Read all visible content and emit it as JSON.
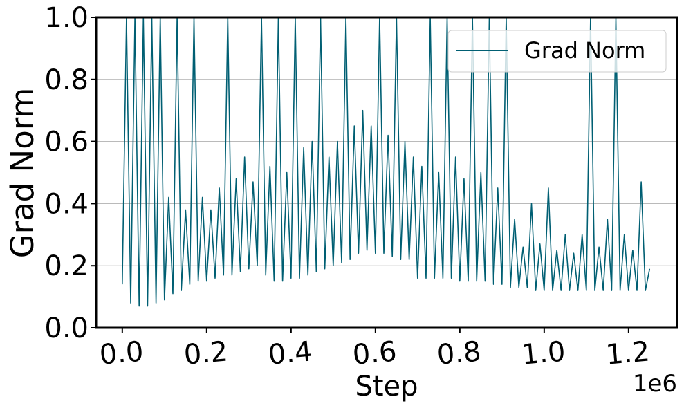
{
  "chart_data": {
    "type": "line",
    "xlabel": "Step",
    "ylabel": "Grad Norm",
    "x_offset_label": "1e6",
    "xlim": [
      -62000,
      1315000
    ],
    "ylim": [
      0,
      1
    ],
    "xticks": [
      {
        "value": 0,
        "label": "0.0"
      },
      {
        "value": 200000,
        "label": "0.2"
      },
      {
        "value": 400000,
        "label": "0.4"
      },
      {
        "value": 600000,
        "label": "0.6"
      },
      {
        "value": 800000,
        "label": "0.8"
      },
      {
        "value": 1000000,
        "label": "1.0"
      },
      {
        "value": 1200000,
        "label": "1.2"
      }
    ],
    "yticks": [
      {
        "value": 0,
        "label": "0.0"
      },
      0.2,
      0.4,
      0.6,
      0.8,
      {
        "value": 1,
        "label": "1.0"
      }
    ],
    "grid": true,
    "legend_position": "upper right",
    "x": [
      0,
      10000,
      20000,
      30000,
      40000,
      50000,
      60000,
      70000,
      80000,
      90000,
      100000,
      110000,
      120000,
      130000,
      140000,
      150000,
      160000,
      170000,
      180000,
      190000,
      200000,
      210000,
      220000,
      230000,
      240000,
      250000,
      260000,
      270000,
      280000,
      290000,
      300000,
      310000,
      320000,
      330000,
      340000,
      350000,
      360000,
      370000,
      380000,
      390000,
      400000,
      410000,
      420000,
      430000,
      440000,
      450000,
      460000,
      470000,
      480000,
      490000,
      500000,
      510000,
      520000,
      530000,
      540000,
      550000,
      560000,
      570000,
      580000,
      590000,
      600000,
      610000,
      620000,
      630000,
      640000,
      650000,
      660000,
      670000,
      680000,
      690000,
      700000,
      710000,
      720000,
      730000,
      740000,
      750000,
      760000,
      770000,
      780000,
      790000,
      800000,
      810000,
      820000,
      830000,
      840000,
      850000,
      860000,
      870000,
      880000,
      890000,
      900000,
      910000,
      920000,
      930000,
      940000,
      950000,
      960000,
      970000,
      980000,
      990000,
      1000000,
      1010000,
      1020000,
      1030000,
      1040000,
      1050000,
      1060000,
      1070000,
      1080000,
      1090000,
      1100000,
      1110000,
      1120000,
      1130000,
      1140000,
      1150000,
      1160000,
      1170000,
      1180000,
      1190000,
      1200000,
      1210000,
      1220000,
      1230000,
      1240000,
      1250000
    ],
    "series": [
      {
        "name": "Grad Norm",
        "color": "#005f73",
        "values": [
          0.14,
          1.0,
          0.08,
          1.0,
          0.07,
          1.0,
          0.07,
          1.0,
          0.08,
          1.0,
          0.09,
          0.42,
          0.11,
          1.0,
          0.12,
          0.38,
          0.14,
          1.0,
          0.15,
          0.42,
          0.15,
          0.38,
          0.16,
          0.45,
          0.17,
          1.0,
          0.17,
          0.48,
          0.18,
          0.55,
          0.19,
          0.47,
          0.2,
          1.0,
          0.17,
          0.52,
          0.15,
          1.0,
          0.15,
          0.5,
          0.16,
          1.0,
          0.16,
          0.58,
          0.17,
          0.6,
          0.18,
          1.0,
          0.19,
          0.55,
          0.2,
          0.6,
          0.21,
          1.0,
          0.22,
          0.65,
          0.24,
          0.7,
          0.25,
          0.65,
          0.24,
          1.0,
          0.24,
          0.62,
          0.23,
          1.0,
          0.22,
          0.6,
          0.22,
          0.55,
          0.16,
          0.52,
          0.16,
          1.0,
          0.16,
          0.5,
          0.16,
          1.0,
          0.16,
          0.55,
          0.15,
          0.48,
          0.15,
          1.0,
          0.15,
          0.5,
          0.15,
          1.0,
          0.14,
          0.45,
          0.14,
          1.0,
          0.13,
          0.35,
          0.13,
          0.26,
          0.13,
          0.4,
          0.12,
          0.27,
          0.12,
          0.45,
          0.12,
          0.25,
          0.12,
          0.3,
          0.12,
          0.24,
          0.12,
          0.3,
          0.12,
          1.0,
          0.12,
          0.26,
          0.12,
          0.35,
          0.12,
          1.0,
          0.12,
          0.3,
          0.12,
          0.25,
          0.12,
          0.47,
          0.12,
          0.19
        ]
      }
    ]
  }
}
